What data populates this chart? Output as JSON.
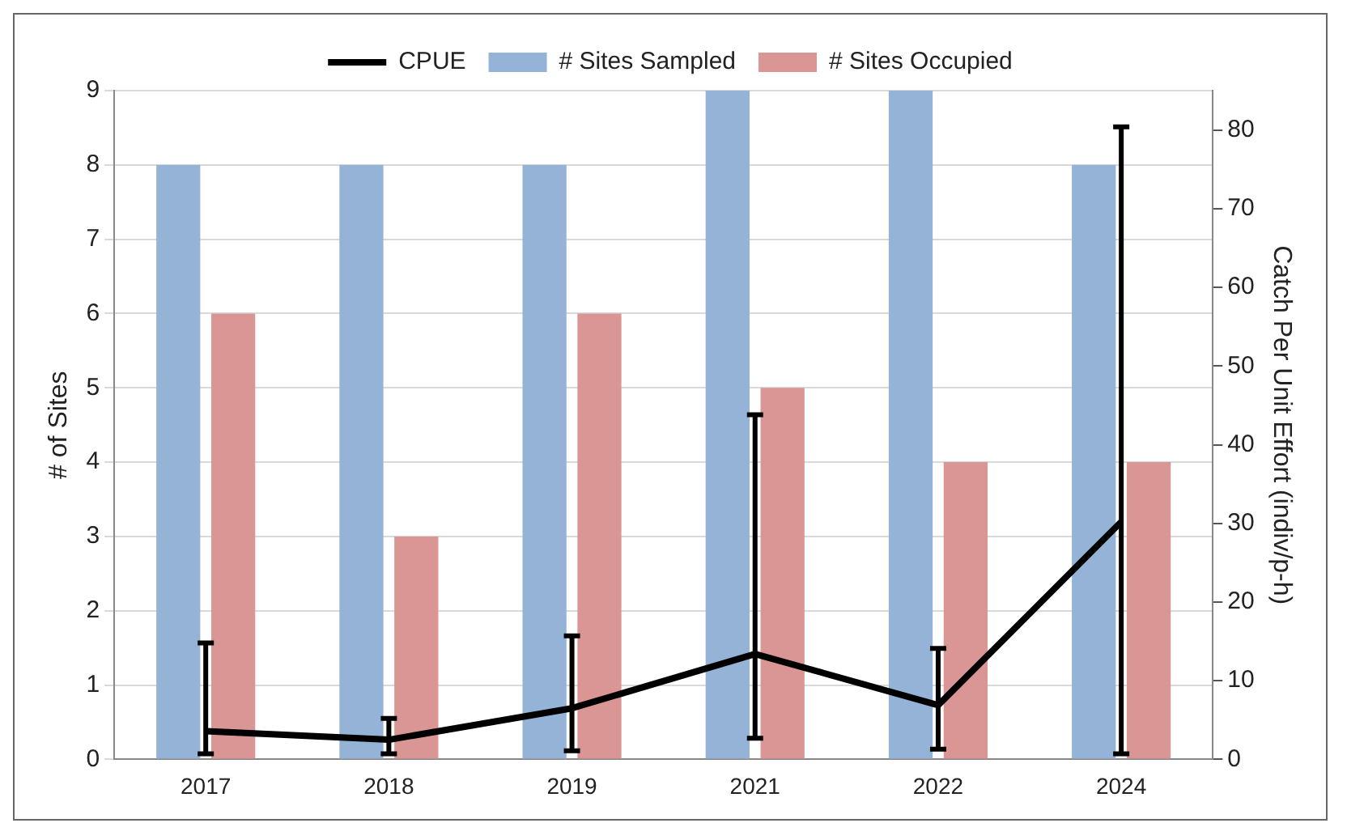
{
  "chart_data": {
    "type": "bar",
    "categories": [
      "2017",
      "2018",
      "2019",
      "2021",
      "2022",
      "2024"
    ],
    "ylabel": "# of Sites",
    "y2label": "Catch Per Unit Effort (indiv/p-h)",
    "series": [
      {
        "name": "# Sites Sampled",
        "color": "#95b3d7",
        "values": [
          8,
          8,
          8,
          9,
          9,
          8
        ]
      },
      {
        "name": "# Sites Occupied",
        "color": "#da9694",
        "values": [
          6,
          3,
          6,
          5,
          4,
          4
        ]
      },
      {
        "name": "CPUE",
        "type": "line",
        "axis": "y2",
        "color": "#000000",
        "values": [
          3.6,
          2.5,
          6.5,
          13.4,
          6.9,
          30.2
        ],
        "errors": [
          [
            0.7,
            14.8
          ],
          [
            0.7,
            5.2
          ],
          [
            1.1,
            15.7
          ],
          [
            2.7,
            43.8
          ],
          [
            1.3,
            14.1
          ],
          [
            0.7,
            80.4
          ]
        ]
      }
    ],
    "ylim": [
      0,
      9
    ],
    "yticks": [
      0,
      1,
      2,
      3,
      4,
      5,
      6,
      7,
      8,
      9
    ],
    "y2lim": [
      0,
      85
    ],
    "y2ticks": [
      0,
      10,
      20,
      30,
      40,
      50,
      60,
      70,
      80
    ],
    "grid": "y",
    "legend": "top",
    "marker": "none",
    "line_style": "solid"
  }
}
